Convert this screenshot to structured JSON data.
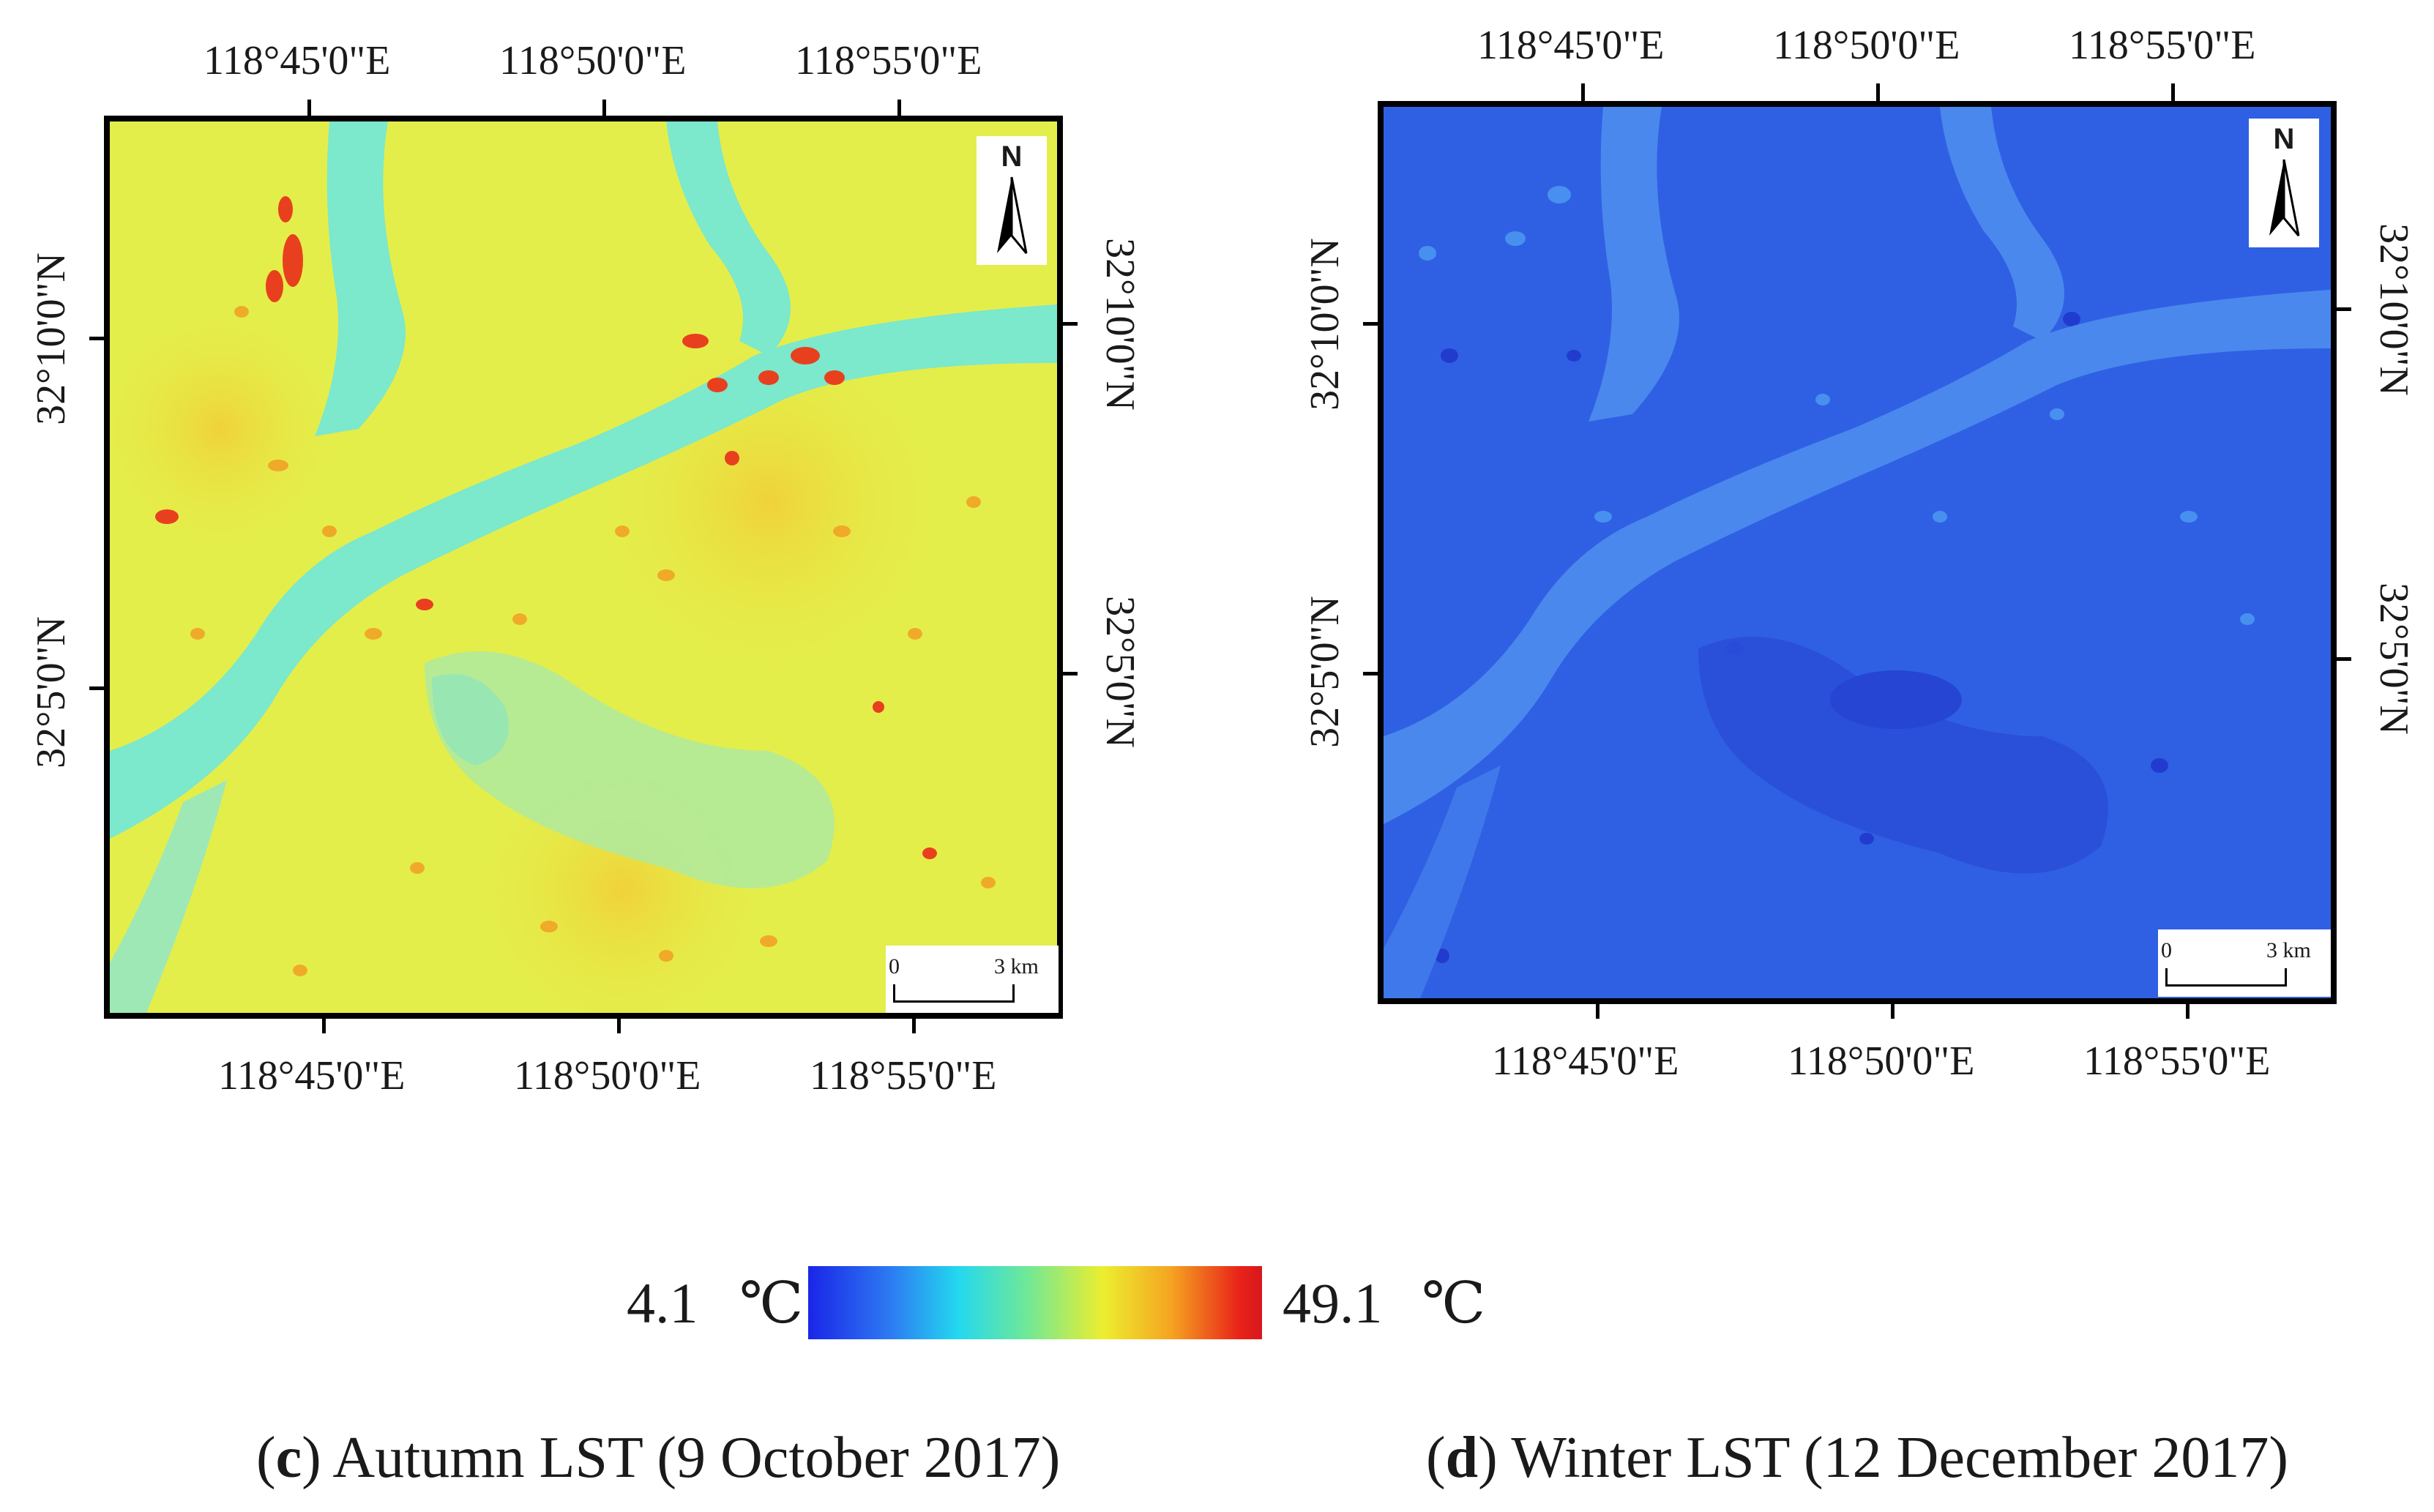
{
  "panel_c": {
    "top_lon": [
      "118°45'0\"E",
      "118°50'0\"E",
      "118°55'0\"E"
    ],
    "bottom_lon": [
      "118°45'0\"E",
      "118°50'0\"E",
      "118°55'0\"E"
    ],
    "left_lat": [
      "32°10'0\"N",
      "32°5'0\"N"
    ],
    "right_lat": [
      "32°10'0\"N",
      "32°5'0\"N"
    ],
    "north_label": "N",
    "scale_start": "0",
    "scale_end": "3 km",
    "caption_letter": "c",
    "caption_text": "Autumn LST (9 October 2017)"
  },
  "panel_d": {
    "top_lon": [
      "118°45'0\"E",
      "118°50'0\"E",
      "118°55'0\"E"
    ],
    "bottom_lon": [
      "118°45'0\"E",
      "118°50'0\"E",
      "118°55'0\"E"
    ],
    "left_lat": [
      "32°10'0\"N",
      "32°5'0\"N"
    ],
    "right_lat": [
      "32°10'0\"N",
      "32°5'0\"N"
    ],
    "north_label": "N",
    "scale_start": "0",
    "scale_end": "3 km",
    "caption_letter": "d",
    "caption_text": "Winter LST (12 December 2017)"
  },
  "legend": {
    "min": "4.1",
    "max": "49.1",
    "unit": "℃"
  },
  "colors": {
    "ramp": [
      "#1a25e8",
      "#2d7af2",
      "#23d8f0",
      "#6ee898",
      "#ecee2f",
      "#f5a421",
      "#e82319"
    ],
    "autumn_land": "#e4ee4a",
    "autumn_water": "#7ce8cc",
    "winter_land": "#2e62e6",
    "winter_water": "#4a88ee"
  }
}
